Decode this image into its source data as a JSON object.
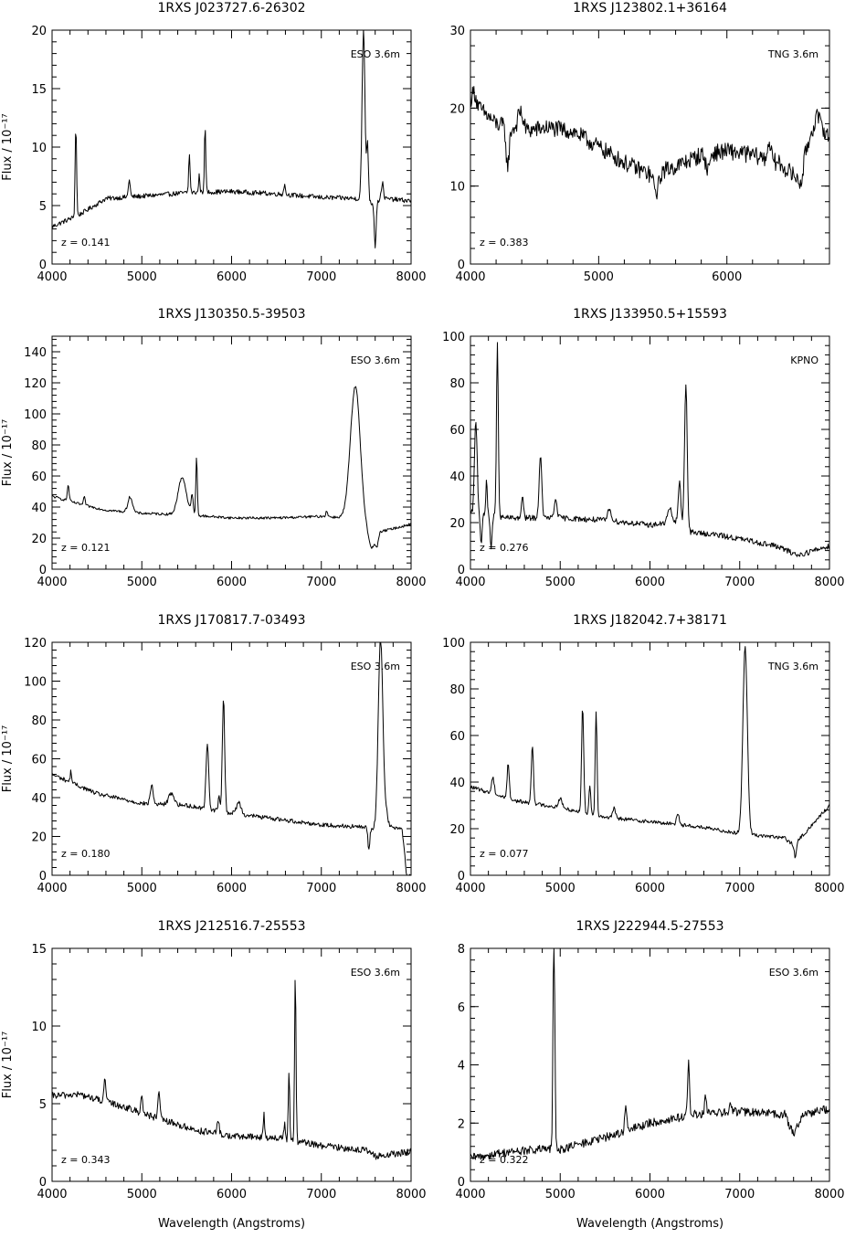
{
  "figure": {
    "xlabel": "Wavelength (Angstroms)",
    "ylabel": "Flux  /  10⁻¹⁷"
  },
  "chart_data": [
    {
      "type": "line",
      "title": "1RXS J023727.6-26302",
      "telescope": "ESO 3.6m",
      "redshift_label": "z = 0.141",
      "xlim": [
        4000,
        8000
      ],
      "ylim": [
        0,
        20
      ],
      "xticks": [
        4000,
        5000,
        6000,
        7000,
        8000
      ],
      "yticks": [
        0,
        5,
        10,
        15,
        20
      ],
      "ylabel_shown": true,
      "xlabel_shown": false,
      "continuum": [
        [
          4000,
          3.2
        ],
        [
          4300,
          4.2
        ],
        [
          4600,
          5.6
        ],
        [
          5000,
          5.8
        ],
        [
          5500,
          6.1
        ],
        [
          6000,
          6.2
        ],
        [
          6500,
          6.0
        ],
        [
          7000,
          5.7
        ],
        [
          7400,
          5.6
        ],
        [
          7560,
          5.2
        ],
        [
          7700,
          5.6
        ],
        [
          8000,
          5.4
        ]
      ],
      "lines": [
        [
          4265,
          7.8,
          8
        ],
        [
          4860,
          1.5,
          10
        ],
        [
          5530,
          3.2,
          8
        ],
        [
          5640,
          1.5,
          7
        ],
        [
          5705,
          5.4,
          8
        ],
        [
          6590,
          0.8,
          10
        ],
        [
          7470,
          14.5,
          16
        ],
        [
          7515,
          5,
          10
        ],
        [
          7600,
          -3.8,
          10
        ],
        [
          7680,
          1.4,
          12
        ]
      ],
      "noise": 0.2
    },
    {
      "type": "line",
      "title": "1RXS J123802.1+36164",
      "telescope": "TNG 3.6m",
      "redshift_label": "z = 0.383",
      "xlim": [
        4000,
        6800
      ],
      "ylim": [
        0,
        30
      ],
      "xticks": [
        4000,
        5000,
        6000
      ],
      "yticks": [
        0,
        10,
        20,
        30
      ],
      "ylabel_shown": false,
      "xlabel_shown": false,
      "continuum": [
        [
          4000,
          21
        ],
        [
          4200,
          18
        ],
        [
          4400,
          17
        ],
        [
          4600,
          17.5
        ],
        [
          4800,
          17
        ],
        [
          5000,
          15
        ],
        [
          5200,
          13
        ],
        [
          5400,
          11.5
        ],
        [
          5600,
          12.5
        ],
        [
          5800,
          14
        ],
        [
          6000,
          14.5
        ],
        [
          6200,
          14
        ],
        [
          6400,
          13
        ],
        [
          6550,
          11
        ],
        [
          6700,
          19
        ],
        [
          6800,
          16
        ]
      ],
      "lines": [
        [
          4030,
          1.5,
          15
        ],
        [
          4290,
          -5,
          12
        ],
        [
          4390,
          2.5,
          20
        ],
        [
          5450,
          -2.5,
          20
        ],
        [
          5850,
          -2,
          15
        ],
        [
          6330,
          2.5,
          12
        ],
        [
          6580,
          -2,
          15
        ]
      ],
      "noise": 1.1
    },
    {
      "type": "line",
      "title": "1RXS J130350.5-39503",
      "telescope": "ESO 3.6m",
      "redshift_label": "z = 0.121",
      "xlim": [
        4000,
        8000
      ],
      "ylim": [
        0,
        150
      ],
      "xticks": [
        4000,
        5000,
        6000,
        7000,
        8000
      ],
      "yticks": [
        0,
        20,
        40,
        60,
        80,
        100,
        120,
        140
      ],
      "ylabel_shown": true,
      "xlabel_shown": false,
      "continuum": [
        [
          4000,
          47
        ],
        [
          4300,
          42
        ],
        [
          4600,
          38
        ],
        [
          5000,
          36
        ],
        [
          5500,
          35
        ],
        [
          6000,
          33
        ],
        [
          6500,
          33
        ],
        [
          7000,
          34
        ],
        [
          7300,
          33
        ],
        [
          7550,
          22
        ],
        [
          7650,
          24
        ],
        [
          8000,
          29
        ]
      ],
      "lines": [
        [
          4180,
          10,
          10
        ],
        [
          4360,
          5,
          10
        ],
        [
          4870,
          10,
          25
        ],
        [
          5450,
          24,
          45
        ],
        [
          5560,
          12,
          12
        ],
        [
          5610,
          38,
          8
        ],
        [
          7380,
          88,
          55
        ],
        [
          7560,
          -9,
          30
        ],
        [
          7620,
          -8,
          15
        ],
        [
          7060,
          4,
          10
        ]
      ],
      "noise": 0.8
    },
    {
      "type": "line",
      "title": "1RXS J133950.5+15593",
      "telescope": "KPNO",
      "redshift_label": "z = 0.276",
      "xlim": [
        4000,
        8000
      ],
      "ylim": [
        0,
        100
      ],
      "xticks": [
        4000,
        5000,
        6000,
        7000,
        8000
      ],
      "yticks": [
        0,
        20,
        40,
        60,
        80,
        100
      ],
      "ylabel_shown": false,
      "xlabel_shown": false,
      "continuum": [
        [
          4000,
          24
        ],
        [
          4400,
          22
        ],
        [
          5000,
          22
        ],
        [
          5500,
          21
        ],
        [
          6000,
          19
        ],
        [
          6300,
          20
        ],
        [
          6400,
          16
        ],
        [
          6700,
          15
        ],
        [
          7000,
          13
        ],
        [
          7400,
          10
        ],
        [
          7650,
          6
        ],
        [
          8000,
          10
        ]
      ],
      "lines": [
        [
          4060,
          40,
          15
        ],
        [
          4120,
          -12,
          10
        ],
        [
          4180,
          16,
          8
        ],
        [
          4230,
          -14,
          10
        ],
        [
          4300,
          76,
          10
        ],
        [
          4580,
          10,
          10
        ],
        [
          4780,
          26,
          15
        ],
        [
          4950,
          8,
          15
        ],
        [
          5550,
          5,
          20
        ],
        [
          6220,
          6,
          25
        ],
        [
          6330,
          18,
          15
        ],
        [
          6400,
          63,
          15
        ]
      ],
      "noise": 1.2
    },
    {
      "type": "line",
      "title": "1RXS J170817.7-03493",
      "telescope": "ESO 3.6m",
      "redshift_label": "z = 0.180",
      "xlim": [
        4000,
        8000
      ],
      "ylim": [
        0,
        120
      ],
      "xticks": [
        4000,
        5000,
        6000,
        7000,
        8000
      ],
      "yticks": [
        0,
        20,
        40,
        60,
        80,
        100,
        120
      ],
      "ylabel_shown": true,
      "xlabel_shown": false,
      "continuum": [
        [
          4000,
          52
        ],
        [
          4500,
          42
        ],
        [
          5000,
          37
        ],
        [
          5500,
          36
        ],
        [
          6000,
          32
        ],
        [
          6500,
          29
        ],
        [
          7000,
          26
        ],
        [
          7400,
          25
        ],
        [
          7600,
          24
        ],
        [
          7800,
          25
        ],
        [
          7900,
          24
        ],
        [
          7950,
          0
        ],
        [
          8000,
          0
        ]
      ],
      "lines": [
        [
          4210,
          6,
          8
        ],
        [
          5110,
          10,
          15
        ],
        [
          5330,
          6,
          30
        ],
        [
          5730,
          33,
          15
        ],
        [
          5860,
          7,
          10
        ],
        [
          5910,
          59,
          13
        ],
        [
          6080,
          6,
          25
        ],
        [
          7530,
          -11,
          10
        ],
        [
          7660,
          99,
          25
        ],
        [
          7720,
          8,
          20
        ]
      ],
      "noise": 1.1
    },
    {
      "type": "line",
      "title": "1RXS J182042.7+38171",
      "telescope": "TNG 3.6m",
      "redshift_label": "z = 0.077",
      "xlim": [
        4000,
        8000
      ],
      "ylim": [
        0,
        100
      ],
      "xticks": [
        4000,
        5000,
        6000,
        7000,
        8000
      ],
      "yticks": [
        0,
        20,
        40,
        60,
        80,
        100
      ],
      "ylabel_shown": false,
      "xlabel_shown": false,
      "continuum": [
        [
          4000,
          38
        ],
        [
          4500,
          32
        ],
        [
          5000,
          29
        ],
        [
          5500,
          25
        ],
        [
          6000,
          23
        ],
        [
          6500,
          21
        ],
        [
          7000,
          18
        ],
        [
          7500,
          16
        ],
        [
          7600,
          13
        ],
        [
          7700,
          17
        ],
        [
          8000,
          30
        ]
      ],
      "lines": [
        [
          4250,
          7,
          15
        ],
        [
          4420,
          15,
          12
        ],
        [
          4690,
          25,
          12
        ],
        [
          5000,
          4,
          20
        ],
        [
          5250,
          45,
          12
        ],
        [
          5330,
          12,
          10
        ],
        [
          5400,
          45,
          10
        ],
        [
          5600,
          4,
          15
        ],
        [
          6310,
          5,
          15
        ],
        [
          7060,
          80,
          25
        ],
        [
          7620,
          -6,
          12
        ]
      ],
      "noise": 0.8
    },
    {
      "type": "line",
      "title": "1RXS J212516.7-25553",
      "telescope": "ESO 3.6m",
      "redshift_label": "z = 0.343",
      "xlim": [
        4000,
        8000
      ],
      "ylim": [
        0,
        15
      ],
      "xticks": [
        4000,
        5000,
        6000,
        7000,
        8000
      ],
      "yticks": [
        0,
        5,
        10,
        15
      ],
      "ylabel_shown": true,
      "xlabel_shown": true,
      "continuum": [
        [
          4000,
          5.5
        ],
        [
          4300,
          5.6
        ],
        [
          4800,
          4.8
        ],
        [
          5200,
          4.0
        ],
        [
          5600,
          3.3
        ],
        [
          6000,
          2.9
        ],
        [
          6500,
          2.8
        ],
        [
          7000,
          2.3
        ],
        [
          7500,
          2.0
        ],
        [
          7600,
          1.6
        ],
        [
          8000,
          1.9
        ]
      ],
      "lines": [
        [
          4590,
          1.5,
          10
        ],
        [
          5000,
          1.2,
          10
        ],
        [
          5190,
          1.6,
          12
        ],
        [
          5850,
          0.8,
          12
        ],
        [
          6360,
          1.5,
          8
        ],
        [
          6640,
          4.2,
          8
        ],
        [
          6710,
          10.6,
          8
        ],
        [
          6590,
          1,
          8
        ]
      ],
      "noise": 0.22
    },
    {
      "type": "line",
      "title": "1RXS J222944.5-27553",
      "telescope": "ESO 3.6m",
      "redshift_label": "z = 0.322",
      "xlim": [
        4000,
        8000
      ],
      "ylim": [
        0,
        8
      ],
      "xticks": [
        4000,
        5000,
        6000,
        7000,
        8000
      ],
      "yticks": [
        0,
        2,
        4,
        6,
        8
      ],
      "ylabel_shown": false,
      "xlabel_shown": true,
      "continuum": [
        [
          4000,
          0.8
        ],
        [
          4400,
          1.0
        ],
        [
          4800,
          1.1
        ],
        [
          5000,
          1.1
        ],
        [
          5500,
          1.5
        ],
        [
          6000,
          2.0
        ],
        [
          6500,
          2.3
        ],
        [
          7000,
          2.4
        ],
        [
          7500,
          2.3
        ],
        [
          7600,
          1.6
        ],
        [
          7700,
          2.3
        ],
        [
          8000,
          2.5
        ]
      ],
      "lines": [
        [
          4930,
          7.5,
          10
        ],
        [
          5730,
          0.9,
          10
        ],
        [
          6430,
          2.0,
          10
        ],
        [
          6620,
          0.6,
          10
        ],
        [
          6900,
          0.3,
          12
        ]
      ],
      "noise": 0.15
    }
  ]
}
